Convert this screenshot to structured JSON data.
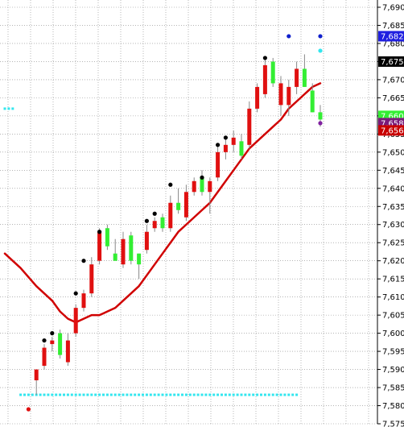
{
  "chart_data": {
    "type": "candlestick",
    "y_axis": {
      "min": 7575,
      "max": 7692,
      "tick_labels": [
        "7,690",
        "7,685",
        "7,680",
        "7,675",
        "7,670",
        "7,665",
        "7,660",
        "7,655",
        "7,650",
        "7,645",
        "7,640",
        "7,635",
        "7,630",
        "7,625",
        "7,620",
        "7,615",
        "7,610",
        "7,605",
        "7,600",
        "7,595",
        "7,590",
        "7,585",
        "7,580",
        "7,575"
      ],
      "tick_values": [
        7690,
        7685,
        7680,
        7675,
        7670,
        7665,
        7660,
        7655,
        7650,
        7645,
        7640,
        7635,
        7630,
        7625,
        7620,
        7615,
        7610,
        7605,
        7600,
        7595,
        7590,
        7585,
        7580,
        7575
      ],
      "position": "right",
      "grid": true
    },
    "bar_count": 49,
    "candles": [
      {
        "i": 4,
        "o": 7587,
        "h": 7589,
        "l": 7583,
        "c": 7590,
        "dir": "down"
      },
      {
        "i": 5,
        "o": 7591,
        "h": 7597,
        "l": 7590,
        "c": 7596,
        "dir": "down"
      },
      {
        "i": 6,
        "o": 7597,
        "h": 7599,
        "l": 7595,
        "c": 7598,
        "dir": "down"
      },
      {
        "i": 7,
        "o": 7600,
        "h": 7601,
        "l": 7593,
        "c": 7594,
        "dir": "up"
      },
      {
        "i": 8,
        "o": 7592,
        "h": 7600,
        "l": 7591,
        "c": 7598,
        "dir": "down"
      },
      {
        "i": 9,
        "o": 7600,
        "h": 7608,
        "l": 7599,
        "c": 7607,
        "dir": "down"
      },
      {
        "i": 10,
        "o": 7607,
        "h": 7612,
        "l": 7606,
        "c": 7611,
        "dir": "down"
      },
      {
        "i": 11,
        "o": 7611,
        "h": 7621,
        "l": 7610,
        "c": 7619,
        "dir": "down"
      },
      {
        "i": 12,
        "o": 7620,
        "h": 7629,
        "l": 7619,
        "c": 7628,
        "dir": "down"
      },
      {
        "i": 13,
        "o": 7629,
        "h": 7630,
        "l": 7623,
        "c": 7624,
        "dir": "up"
      },
      {
        "i": 14,
        "o": 7622,
        "h": 7626,
        "l": 7620,
        "c": 7620,
        "dir": "up"
      },
      {
        "i": 15,
        "o": 7619,
        "h": 7628,
        "l": 7618,
        "c": 7626,
        "dir": "down"
      },
      {
        "i": 16,
        "o": 7627,
        "h": 7628,
        "l": 7619,
        "c": 7620,
        "dir": "up"
      },
      {
        "i": 17,
        "o": 7619,
        "h": 7622,
        "l": 7615,
        "c": 7622,
        "dir": "up"
      },
      {
        "i": 18,
        "o": 7623,
        "h": 7630,
        "l": 7622,
        "c": 7628,
        "dir": "down"
      },
      {
        "i": 19,
        "o": 7629,
        "h": 7632,
        "l": 7628,
        "c": 7631,
        "dir": "down"
      },
      {
        "i": 20,
        "o": 7632,
        "h": 7633,
        "l": 7628,
        "c": 7629,
        "dir": "up"
      },
      {
        "i": 21,
        "o": 7629,
        "h": 7638,
        "l": 7628,
        "c": 7636,
        "dir": "down"
      },
      {
        "i": 22,
        "o": 7636,
        "h": 7640,
        "l": 7633,
        "c": 7634,
        "dir": "up"
      },
      {
        "i": 23,
        "o": 7632,
        "h": 7641,
        "l": 7631,
        "c": 7639,
        "dir": "down"
      },
      {
        "i": 24,
        "o": 7639,
        "h": 7643,
        "l": 7638,
        "c": 7642,
        "dir": "down"
      },
      {
        "i": 25,
        "o": 7643,
        "h": 7645,
        "l": 7638,
        "c": 7639,
        "dir": "up"
      },
      {
        "i": 26,
        "o": 7639,
        "h": 7643,
        "l": 7633,
        "c": 7642,
        "dir": "down"
      },
      {
        "i": 27,
        "o": 7643,
        "h": 7652,
        "l": 7642,
        "c": 7650,
        "dir": "down"
      },
      {
        "i": 28,
        "o": 7650,
        "h": 7654,
        "l": 7648,
        "c": 7652,
        "dir": "down"
      },
      {
        "i": 29,
        "o": 7652,
        "h": 7656,
        "l": 7650,
        "c": 7654,
        "dir": "down"
      },
      {
        "i": 30,
        "o": 7653,
        "h": 7655,
        "l": 7648,
        "c": 7649,
        "dir": "up"
      },
      {
        "i": 31,
        "o": 7652,
        "h": 7664,
        "l": 7651,
        "c": 7662,
        "dir": "down"
      },
      {
        "i": 32,
        "o": 7662,
        "h": 7669,
        "l": 7661,
        "c": 7668,
        "dir": "down"
      },
      {
        "i": 33,
        "o": 7666,
        "h": 7676,
        "l": 7665,
        "c": 7674,
        "dir": "down"
      },
      {
        "i": 34,
        "o": 7675,
        "h": 7676,
        "l": 7668,
        "c": 7669,
        "dir": "up"
      },
      {
        "i": 35,
        "o": 7669,
        "h": 7671,
        "l": 7660,
        "c": 7663,
        "dir": "down"
      },
      {
        "i": 36,
        "o": 7663,
        "h": 7670,
        "l": 7660,
        "c": 7668,
        "dir": "down"
      },
      {
        "i": 37,
        "o": 7668,
        "h": 7675,
        "l": 7666,
        "c": 7673,
        "dir": "down"
      },
      {
        "i": 38,
        "o": 7673,
        "h": 7677,
        "l": 7668,
        "c": 7668,
        "dir": "up"
      },
      {
        "i": 39,
        "o": 7667,
        "h": 7669,
        "l": 7661,
        "c": 7661,
        "dir": "up"
      },
      {
        "i": 40,
        "o": 7661,
        "h": 7663,
        "l": 7657,
        "c": 7659,
        "dir": "up"
      }
    ],
    "black_dots": [
      [
        5,
        7598
      ],
      [
        6,
        7600
      ],
      [
        9,
        7611
      ],
      [
        10,
        7620
      ],
      [
        12,
        7628
      ],
      [
        18,
        7631
      ],
      [
        19,
        7633
      ],
      [
        21,
        7641
      ],
      [
        25,
        7643
      ],
      [
        27,
        7652
      ],
      [
        28,
        7654
      ],
      [
        33,
        7676
      ]
    ],
    "blue_dots": [
      [
        36,
        7682
      ],
      [
        40,
        7682
      ]
    ],
    "cyan_top_dots": [
      [
        40,
        7678
      ]
    ],
    "purple_dots": [
      [
        40,
        7658
      ]
    ],
    "red_dots": [
      [
        3,
        7579
      ]
    ],
    "cyan_band": {
      "value": 7583,
      "from": 2,
      "to": 37
    },
    "cyan_left": {
      "value": 7662,
      "from": 0,
      "to": 1
    },
    "moving_average": [
      [
        0,
        7622
      ],
      [
        2,
        7618
      ],
      [
        4,
        7613
      ],
      [
        6,
        7609
      ],
      [
        7,
        7606
      ],
      [
        8,
        7604
      ],
      [
        9,
        7603
      ],
      [
        10,
        7604
      ],
      [
        11,
        7605
      ],
      [
        12,
        7605
      ],
      [
        13,
        7606
      ],
      [
        14,
        7607
      ],
      [
        15,
        7609
      ],
      [
        16,
        7611
      ],
      [
        17,
        7613
      ],
      [
        18,
        7616
      ],
      [
        19,
        7619
      ],
      [
        20,
        7622
      ],
      [
        21,
        7625
      ],
      [
        22,
        7628
      ],
      [
        23,
        7630
      ],
      [
        24,
        7632
      ],
      [
        25,
        7634
      ],
      [
        26,
        7636
      ],
      [
        27,
        7639
      ],
      [
        28,
        7642
      ],
      [
        29,
        7645
      ],
      [
        30,
        7648
      ],
      [
        31,
        7651
      ],
      [
        32,
        7653
      ],
      [
        33,
        7655
      ],
      [
        34,
        7657
      ],
      [
        35,
        7659
      ],
      [
        36,
        7662
      ],
      [
        37,
        7664
      ],
      [
        38,
        7666
      ],
      [
        39,
        7668
      ],
      [
        40,
        7669
      ]
    ],
    "price_tags": [
      {
        "label": "7,682",
        "value": 7682,
        "bg": "#1f1fe0",
        "fg": "#ffffff"
      },
      {
        "label": "7,675",
        "value": 7675,
        "bg": "#000000",
        "fg": "#ffffff"
      },
      {
        "label": "7,660",
        "value": 7660,
        "bg": "#33ee33",
        "fg": "#ffffff"
      },
      {
        "label": "7,658",
        "value": 7658,
        "bg": "#7a1a7a",
        "fg": "#ffffff"
      },
      {
        "label": "7,656",
        "value": 7656,
        "bg": "#c80000",
        "fg": "#ffffff"
      }
    ]
  },
  "colors": {
    "up_candle": "#33ee33",
    "down_candle": "#e01010",
    "ma_line": "#d00000",
    "cyan": "#33e6ee",
    "black": "#000000",
    "blue": "#1020cc",
    "purple": "#8020a0",
    "grid": "#888888"
  }
}
